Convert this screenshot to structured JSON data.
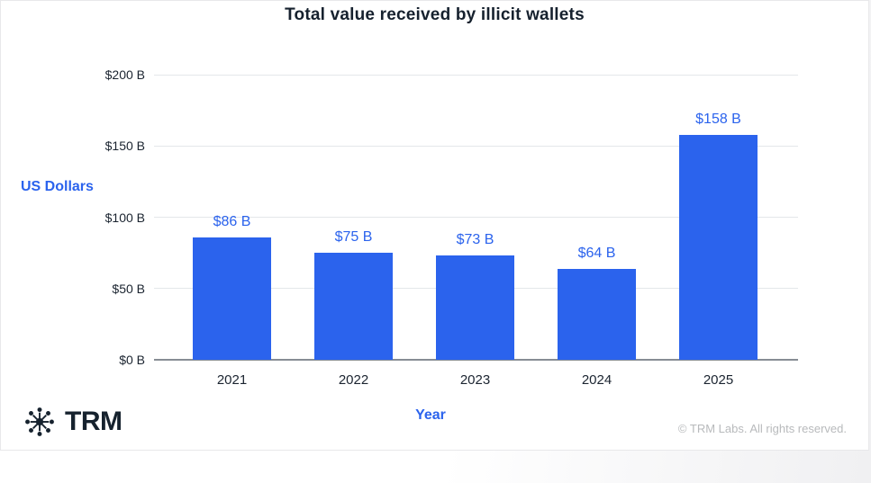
{
  "title": "Total value received by illicit wallets",
  "chart_data": {
    "type": "bar",
    "title": "Total value received by illicit wallets",
    "xlabel": "Year",
    "ylabel": "US Dollars",
    "categories": [
      "2021",
      "2022",
      "2023",
      "2024",
      "2025"
    ],
    "values": [
      86,
      75,
      73,
      64,
      158
    ],
    "data_labels": [
      "$86 B",
      "$75 B",
      "$73 B",
      "$64 B",
      "$158 B"
    ],
    "ylim": [
      0,
      200
    ],
    "y_ticks": [
      {
        "value": 200,
        "label": "$200 B"
      },
      {
        "value": 150,
        "label": "$150 B"
      },
      {
        "value": 100,
        "label": "$100 B"
      },
      {
        "value": 50,
        "label": "$50 B"
      },
      {
        "value": 0,
        "label": "$0 B"
      }
    ],
    "grid": true,
    "legend": false
  },
  "colors": {
    "bar": "#2b63ed",
    "accent_blue": "#2b63ed",
    "title_text": "#16212e",
    "axis_text": "#1b2430",
    "gridline": "#e4e7ea",
    "axis_line": "#878d94",
    "muted_text": "#b8babc",
    "card_background": "#ffffff"
  },
  "footer": {
    "logo_icon": "trm-network-icon",
    "brand": "TRM",
    "copyright": "© TRM Labs. All rights reserved."
  }
}
